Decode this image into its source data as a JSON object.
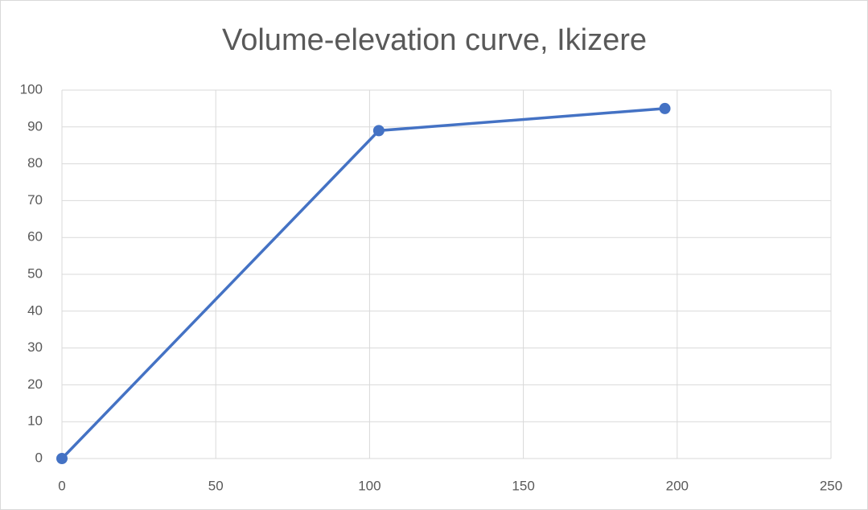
{
  "chart_data": {
    "type": "line",
    "title": "Volume-elevation curve, Ikizere",
    "x": [
      0,
      103,
      196
    ],
    "values": [
      0,
      89,
      95
    ],
    "color": "#4472c4",
    "xlim": [
      0,
      250
    ],
    "xticks": [
      0,
      50,
      100,
      150,
      200,
      250
    ],
    "ylim": [
      0,
      100
    ],
    "yticks": [
      0,
      10,
      20,
      30,
      40,
      50,
      60,
      70,
      80,
      90,
      100
    ],
    "grid": true,
    "markers": true
  }
}
